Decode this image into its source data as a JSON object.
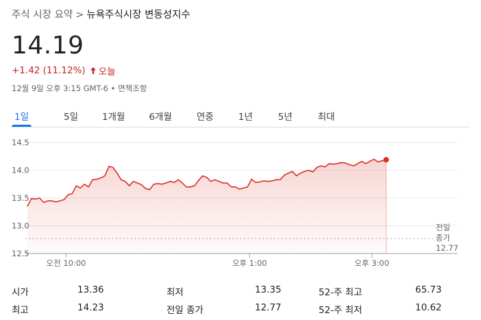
{
  "breadcrumb": {
    "parent": "주식 시장 요약",
    "separator": ">",
    "current": "뉴욕주식시장 변동성지수"
  },
  "quote": {
    "price": "14.19",
    "change": "+1.42 (11.12%)",
    "direction_icon": "arrow-up-icon",
    "period": "오늘",
    "timestamp": "12월 9일 오후 3:15 GMT-6 • 면책조항"
  },
  "tabs": [
    {
      "label": "1일",
      "active": true
    },
    {
      "label": "5일",
      "active": false
    },
    {
      "label": "1개월",
      "active": false
    },
    {
      "label": "6개월",
      "active": false
    },
    {
      "label": "연중",
      "active": false
    },
    {
      "label": "1년",
      "active": false
    },
    {
      "label": "5년",
      "active": false
    },
    {
      "label": "최대",
      "active": false
    }
  ],
  "colors": {
    "line": "#d93025",
    "text_negative": "#c5221f",
    "tab_active": "#1a73e8",
    "grid": "#e8eaed"
  },
  "chart_data": {
    "type": "area",
    "y_ticks": [
      "14.5",
      "14.0",
      "13.5",
      "13.0",
      "12.5"
    ],
    "ylim": [
      12.5,
      14.5
    ],
    "x_ticks": [
      "오전 10:00",
      "오후 1:00",
      "오후 3:00"
    ],
    "x_tick_minutes": [
      30,
      210,
      330
    ],
    "x_range_minutes": [
      -8,
      390
    ],
    "previous_close": 12.77,
    "previous_close_label_lines": [
      "전일",
      "종가",
      "12.77"
    ],
    "series": [
      {
        "x_minutes": [
          -8,
          -4,
          0,
          4,
          8,
          12,
          16,
          20,
          24,
          28,
          32,
          36,
          40,
          44,
          48,
          52,
          56,
          60,
          64,
          68,
          72,
          76,
          80,
          84,
          88,
          92,
          96,
          100,
          104,
          108,
          112,
          116,
          120,
          124,
          128,
          132,
          136,
          140,
          144,
          148,
          152,
          156,
          160,
          164,
          168,
          172,
          176,
          180,
          184,
          188,
          192,
          196,
          200,
          204,
          208,
          212,
          216,
          220,
          224,
          228,
          232,
          236,
          240,
          244,
          248,
          252,
          256,
          260,
          264,
          268,
          272,
          276,
          280,
          284,
          288,
          292,
          296,
          300,
          304,
          308,
          312,
          316,
          320,
          324,
          328,
          332,
          336,
          340,
          344
        ],
        "values": [
          13.35,
          13.49,
          13.48,
          13.5,
          13.42,
          13.45,
          13.45,
          13.43,
          13.45,
          13.47,
          13.56,
          13.58,
          13.72,
          13.68,
          13.75,
          13.7,
          13.83,
          13.84,
          13.86,
          13.9,
          14.07,
          14.05,
          13.95,
          13.83,
          13.8,
          13.72,
          13.8,
          13.77,
          13.74,
          13.67,
          13.65,
          13.75,
          13.76,
          13.75,
          13.77,
          13.8,
          13.78,
          13.83,
          13.77,
          13.7,
          13.7,
          13.72,
          13.82,
          13.9,
          13.87,
          13.8,
          13.83,
          13.8,
          13.77,
          13.77,
          13.7,
          13.7,
          13.66,
          13.68,
          13.7,
          13.84,
          13.78,
          13.79,
          13.81,
          13.8,
          13.81,
          13.83,
          13.83,
          13.91,
          13.95,
          13.98,
          13.9,
          13.95,
          13.98,
          14.0,
          13.97,
          14.05,
          14.08,
          14.06,
          14.12,
          14.11,
          14.12,
          14.14,
          14.13,
          14.1,
          14.08,
          14.12,
          14.16,
          14.12,
          14.16,
          14.2,
          14.15,
          14.17,
          14.19
        ]
      }
    ],
    "grid": true
  },
  "stats": {
    "rows": [
      [
        {
          "label": "시가",
          "value": "13.36"
        },
        {
          "label": "최저",
          "value": "13.35"
        },
        {
          "label": "52-주 최고",
          "value": "65.73"
        }
      ],
      [
        {
          "label": "최고",
          "value": "14.23"
        },
        {
          "label": "전일 종가",
          "value": "12.77"
        },
        {
          "label": "52-주 최저",
          "value": "10.62"
        }
      ]
    ]
  }
}
